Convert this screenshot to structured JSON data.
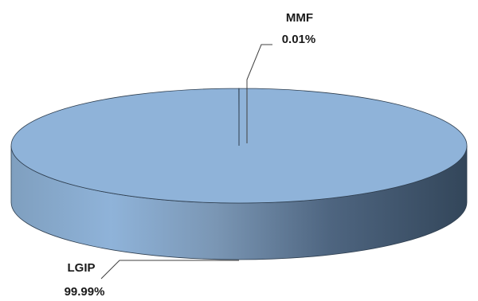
{
  "chart_data": {
    "type": "pie",
    "style": "3d",
    "slices": [
      {
        "label": "LGIP",
        "value": 99.99,
        "value_text": "99.99%",
        "color": "#8fb3d9"
      },
      {
        "label": "MMF",
        "value": 0.01,
        "value_text": "0.01%",
        "color": "#8fb3d9"
      }
    ],
    "title": "",
    "legend": "none"
  }
}
